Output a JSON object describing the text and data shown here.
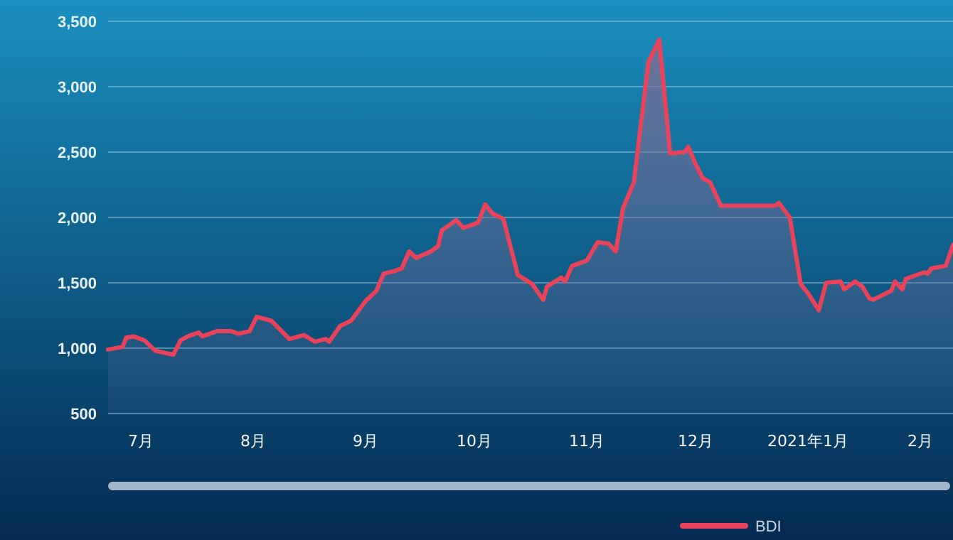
{
  "chart_data": {
    "type": "area",
    "xlim": [
      "2020-06-22",
      "2021-02-10"
    ],
    "ylim": [
      500,
      3500
    ],
    "xticks": [
      {
        "value": "2020-07-01",
        "label": "7月"
      },
      {
        "value": "2020-08-01",
        "label": "8月"
      },
      {
        "value": "2020-09-01",
        "label": "9月"
      },
      {
        "value": "2020-10-01",
        "label": "10月"
      },
      {
        "value": "2020-11-01",
        "label": "11月"
      },
      {
        "value": "2020-12-01",
        "label": "12月"
      },
      {
        "value": "2021-01-01",
        "label": "2021年1月"
      },
      {
        "value": "2021-02-01",
        "label": "2月"
      }
    ],
    "yticks": [
      500,
      {
        "value": 1000,
        "label": "1,000"
      },
      {
        "value": 1500,
        "label": "1,500"
      },
      {
        "value": 2000,
        "label": "2,000"
      },
      {
        "value": 2500,
        "label": "2,500"
      },
      {
        "value": 3000,
        "label": "3,000"
      },
      {
        "value": 3500,
        "label": "3,500"
      }
    ],
    "grid": "y",
    "legend": "bottom",
    "x": [
      "2020-06-22",
      "2020-06-26",
      "2020-06-27",
      "2020-06-29",
      "2020-07-02",
      "2020-07-05",
      "2020-07-10",
      "2020-07-12",
      "2020-07-14",
      "2020-07-17",
      "2020-07-18",
      "2020-07-22",
      "2020-07-26",
      "2020-07-28",
      "2020-07-31",
      "2020-08-02",
      "2020-08-06",
      "2020-08-11",
      "2020-08-15",
      "2020-08-18",
      "2020-08-21",
      "2020-08-22",
      "2020-08-25",
      "2020-08-28",
      "2020-09-01",
      "2020-09-04",
      "2020-09-06",
      "2020-09-09",
      "2020-09-11",
      "2020-09-13",
      "2020-09-15",
      "2020-09-19",
      "2020-09-21",
      "2020-09-22",
      "2020-09-26",
      "2020-09-28",
      "2020-10-02",
      "2020-10-04",
      "2020-10-06",
      "2020-10-09",
      "2020-10-13",
      "2020-10-17",
      "2020-10-20",
      "2020-10-21",
      "2020-10-25",
      "2020-10-26",
      "2020-10-28",
      "2020-11-01",
      "2020-11-04",
      "2020-11-07",
      "2020-11-09",
      "2020-11-11",
      "2020-11-14",
      "2020-11-18",
      "2020-11-21",
      "2020-11-24",
      "2020-11-28",
      "2020-11-29",
      "2020-12-01",
      "2020-12-03",
      "2020-12-05",
      "2020-12-08",
      "2020-12-23",
      "2020-12-24",
      "2020-12-27",
      "2020-12-30",
      "2021-01-01",
      "2021-01-04",
      "2021-01-06",
      "2021-01-10",
      "2021-01-11",
      "2021-01-14",
      "2021-01-16",
      "2021-01-18",
      "2021-01-19",
      "2021-01-24",
      "2021-01-25",
      "2021-01-27",
      "2021-01-28",
      "2021-02-02",
      "2021-02-03",
      "2021-02-04",
      "2021-02-08",
      "2021-02-10"
    ],
    "series": [
      {
        "name": "BDI",
        "color": "#e8435a",
        "values": [
          990,
          1010,
          1080,
          1090,
          1060,
          980,
          950,
          1060,
          1090,
          1120,
          1090,
          1130,
          1130,
          1110,
          1130,
          1240,
          1210,
          1070,
          1100,
          1050,
          1070,
          1050,
          1170,
          1210,
          1360,
          1440,
          1570,
          1590,
          1610,
          1740,
          1690,
          1740,
          1780,
          1900,
          1980,
          1920,
          1960,
          2100,
          2030,
          1990,
          1560,
          1490,
          1370,
          1470,
          1540,
          1510,
          1630,
          1670,
          1810,
          1800,
          1740,
          2070,
          2270,
          3190,
          3360,
          2490,
          2500,
          2540,
          2410,
          2300,
          2270,
          2090,
          2090,
          2110,
          2000,
          1490,
          1420,
          1290,
          1500,
          1510,
          1450,
          1510,
          1470,
          1380,
          1370,
          1440,
          1510,
          1450,
          1530,
          1580,
          1570,
          1610,
          1630,
          1790
        ]
      }
    ]
  }
}
